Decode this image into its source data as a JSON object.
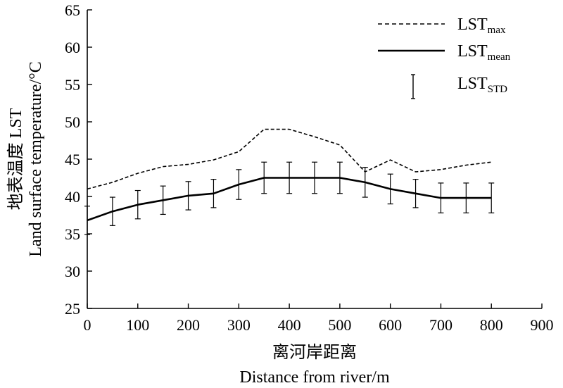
{
  "chart_data": {
    "type": "line",
    "xlabel_cn": "离河岸距离",
    "xlabel": "Distance from river/m",
    "ylabel_cn": "地表温度 LST",
    "ylabel": "Land surface temperature/°C",
    "xlim": [
      0,
      900
    ],
    "ylim": [
      25,
      65
    ],
    "x_ticks": [
      0,
      100,
      200,
      300,
      400,
      500,
      600,
      700,
      800,
      900
    ],
    "y_ticks": [
      25,
      30,
      35,
      40,
      45,
      50,
      55,
      60,
      65
    ],
    "grid": false,
    "legend_position": "top-right",
    "x": [
      0,
      50,
      100,
      150,
      200,
      250,
      300,
      350,
      400,
      450,
      500,
      550,
      600,
      650,
      700,
      750,
      800
    ],
    "series": [
      {
        "name": "LST",
        "name_sub": "max",
        "style": "dashed",
        "values": [
          41.0,
          41.9,
          43.1,
          44.0,
          44.3,
          44.9,
          46.0,
          49.0,
          49.0,
          48.0,
          46.9,
          43.3,
          44.9,
          43.3,
          43.6,
          44.2,
          44.6
        ]
      },
      {
        "name": "LST",
        "name_sub": "mean",
        "style": "solid",
        "values": [
          36.8,
          38.0,
          38.9,
          39.5,
          40.1,
          40.4,
          41.6,
          42.5,
          42.5,
          42.5,
          42.5,
          41.9,
          41.0,
          40.4,
          39.8,
          39.8,
          39.8
        ],
        "error": [
          1.9,
          1.9,
          1.9,
          1.9,
          1.9,
          1.9,
          2.0,
          2.1,
          2.1,
          2.1,
          2.1,
          2.0,
          2.0,
          1.9,
          2.0,
          2.0,
          2.0
        ]
      }
    ],
    "legend": [
      {
        "label": "LST",
        "sub": "max",
        "style": "dashed"
      },
      {
        "label": "LST",
        "sub": "mean",
        "style": "solid"
      },
      {
        "label": "LST",
        "sub": "STD",
        "style": "errorbar"
      }
    ]
  }
}
